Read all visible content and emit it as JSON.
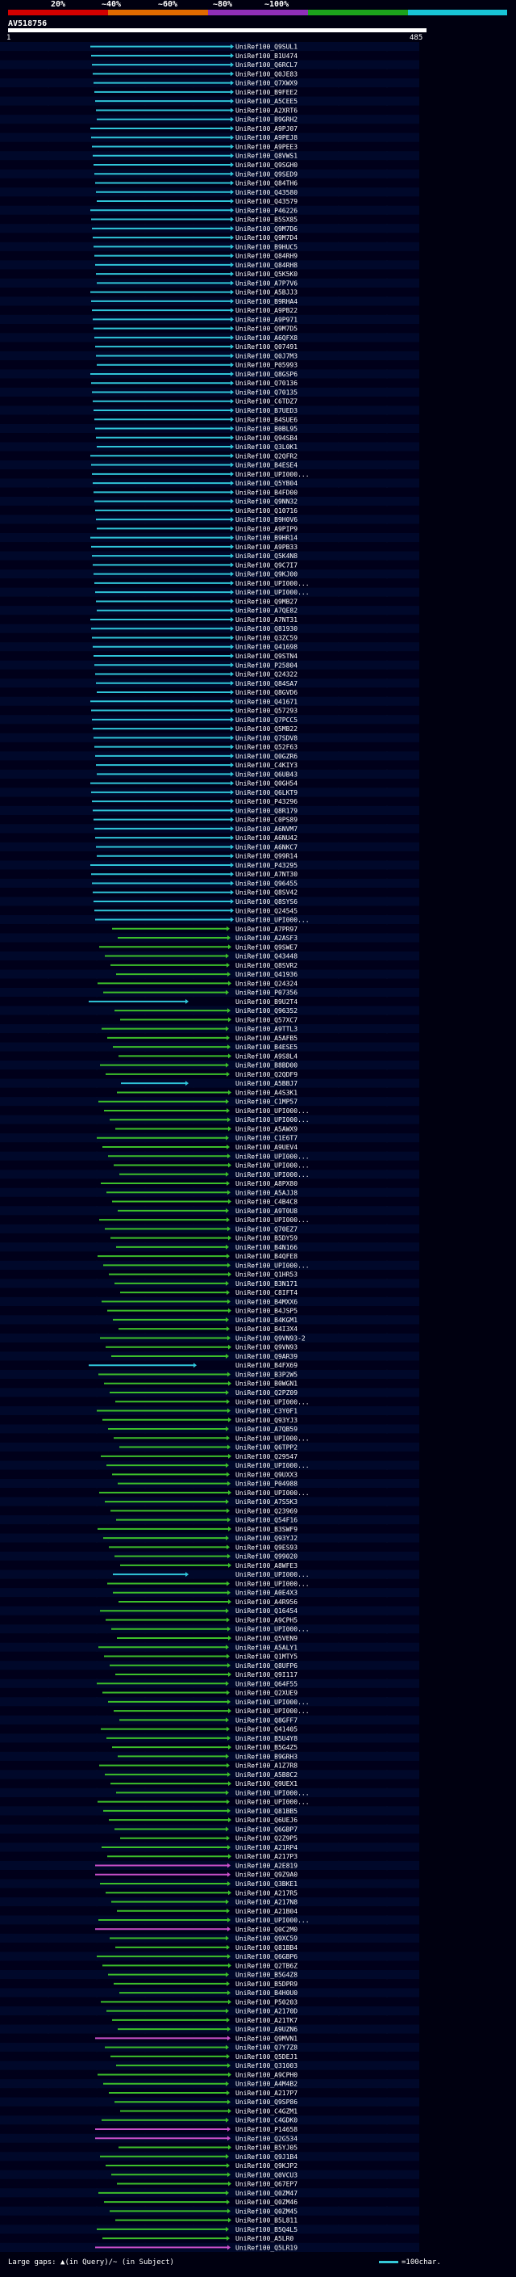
{
  "header": {
    "identity_legend": [
      {
        "label": "20%",
        "color": "#d40000"
      },
      {
        "label": "~40%",
        "color": "#e06a00"
      },
      {
        "label": "~60%",
        "color": "#8f2fb8"
      },
      {
        "label": "~80%",
        "color": "#1ca21c"
      },
      {
        "label": "~100%",
        "color": "#18c4d6"
      }
    ],
    "query_name": "AV518756",
    "axis_start": "1",
    "axis_end": "485"
  },
  "footer": {
    "gaps_label": "Large gaps: ▲(in Query)/~ (in Subject)",
    "scale_label": "=100char."
  },
  "colors": {
    "cyan": "#2fc4d8",
    "green": "#3cbf2a",
    "magenta": "#c84fc8",
    "white": "#ffffff"
  },
  "hits": [
    "UniRef100_Q9SUL1",
    "UniRef100_B1U474",
    "UniRef100_Q6RCL7",
    "UniRef100_Q0JE83",
    "UniRef100_Q7XWX9",
    "UniRef100_B9FEE2",
    "UniRef100_A5CEE5",
    "UniRef100_A2XRT6",
    "UniRef100_B9GRH2",
    "UniRef100_A9PJ07",
    "UniRef100_A9PEJ8",
    "UniRef100_A9PEE3",
    "UniRef100_Q8VWS1",
    "UniRef100_Q9SGH0",
    "UniRef100_Q9SED9",
    "UniRef100_Q84TH6",
    "UniRef100_Q43580",
    "UniRef100_Q43579",
    "UniRef100_P46226",
    "UniRef100_B5SX85",
    "UniRef100_Q9M7D6",
    "UniRef100_Q9M7D4",
    "UniRef100_B9HUC5",
    "UniRef100_Q84RH9",
    "UniRef100_Q84RH8",
    "UniRef100_Q5K5K0",
    "UniRef100_A7P7V6",
    "UniRef100_A5BJJ3",
    "UniRef100_B9RHA4",
    "UniRef100_A9PB22",
    "UniRef100_A9P971",
    "UniRef100_Q9M7D5",
    "UniRef100_A6QFX8",
    "UniRef100_Q07491",
    "UniRef100_Q0J7M3",
    "UniRef100_P05993",
    "UniRef100_Q8GSP6",
    "UniRef100_Q70136",
    "UniRef100_Q70135",
    "UniRef100_C6TDZ7",
    "UniRef100_B7UED3",
    "UniRef100_B4SUE6",
    "UniRef100_B0BL95",
    "UniRef100_Q94SB4",
    "UniRef100_Q3L0K1",
    "UniRef100_Q2QFR2",
    "UniRef100_B4ESE4",
    "UniRef100_UPI000...",
    "UniRef100_Q5YB04",
    "UniRef100_B4FD00",
    "UniRef100_Q9NN32",
    "UniRef100_Q10716",
    "UniRef100_B9H0V6",
    "UniRef100_A9PIP9",
    "UniRef100_B9HR14",
    "UniRef100_A9PB33",
    "UniRef100_Q5K4N8",
    "UniRef100_Q9C7I7",
    "UniRef100_Q9KJ00",
    "UniRef100_UPI000...",
    "UniRef100_UPI000...",
    "UniRef100_Q9MB27",
    "UniRef100_A7QE82",
    "UniRef100_A7NT31",
    "UniRef100_Q81930",
    "UniRef100_Q3ZC59",
    "UniRef100_Q41698",
    "UniRef100_Q9STN4",
    "UniRef100_P25804",
    "UniRef100_Q24322",
    "UniRef100_Q84SA7",
    "UniRef100_Q8GVD6",
    "UniRef100_Q41671",
    "UniRef100_Q57293",
    "UniRef100_Q7PCC5",
    "UniRef100_Q5MB22",
    "UniRef100_Q7SDV8",
    "UniRef100_Q52F63",
    "UniRef100_Q0GZR6",
    "UniRef100_C4KIY3",
    "UniRef100_Q6UB43",
    "UniRef100_Q0GH54",
    "UniRef100_Q6LKT9",
    "UniRef100_P43296",
    "UniRef100_Q8R179",
    "UniRef100_C0PS89",
    "UniRef100_A6NVM7",
    "UniRef100_A6NU42",
    "UniRef100_A6NKC7",
    "UniRef100_Q99R14",
    "UniRef100_P43295",
    "UniRef100_A7NT30",
    "UniRef100_Q96455",
    "UniRef100_Q8SV42",
    "UniRef100_Q8SYS6",
    "UniRef100_Q24545",
    "UniRef100_UPI000...",
    "UniRef100_A7PR97",
    "UniRef100_A2ASF3",
    "UniRef100_Q9SWE7",
    "UniRef100_Q43448",
    "UniRef100_Q8SVR2",
    "UniRef100_Q41936",
    "UniRef100_Q24324",
    "UniRef100_P07356",
    "UniRef100_B9U2T4",
    "UniRef100_Q96352",
    "UniRef100_Q57XC7",
    "UniRef100_A9TTL3",
    "UniRef100_A5AFB5",
    "UniRef100_B4ESE5",
    "UniRef100_A9S8L4",
    "UniRef100_B8BD00",
    "UniRef100_Q2QDF9",
    "UniRef100_A5BBJ7",
    "UniRef100_A4S3K1",
    "UniRef100_C1MP57",
    "UniRef100_UPI000...",
    "UniRef100_UPI000...",
    "UniRef100_A5AWX9",
    "UniRef100_C1E6T7",
    "UniRef100_A9UEV4",
    "UniRef100_UPI000...",
    "UniRef100_UPI000...",
    "UniRef100_UPI000...",
    "UniRef100_A8PX80",
    "UniRef100_A5AJJ8",
    "UniRef100_C4B4C8",
    "UniRef100_A9T0U8",
    "UniRef100_UPI000...",
    "UniRef100_Q70EZ7",
    "UniRef100_B5DY59",
    "UniRef100_B4N166",
    "UniRef100_B4QFE8",
    "UniRef100_UPI000...",
    "UniRef100_Q1HR53",
    "UniRef100_B3N171",
    "UniRef100_C8IFT4",
    "UniRef100_B4MXX6",
    "UniRef100_B4JSP5",
    "UniRef100_B4KGM1",
    "UniRef100_B4I3X4",
    "UniRef100_Q9VN93-2",
    "UniRef100_Q9VN93",
    "UniRef100_Q9AR39",
    "UniRef100_B4FX69",
    "UniRef100_B3P2W5",
    "UniRef100_B0WGN1",
    "UniRef100_Q2PZ09",
    "UniRef100_UPI000...",
    "UniRef100_C3Y0F1",
    "UniRef100_Q93YJ3",
    "UniRef100_A7QB59",
    "UniRef100_UPI000...",
    "UniRef100_Q6TPP2",
    "UniRef100_Q29547",
    "UniRef100_UPI000...",
    "UniRef100_Q9UXX3",
    "UniRef100_P04988",
    "UniRef100_UPI000...",
    "UniRef100_A7S5K3",
    "UniRef100_Q23969",
    "UniRef100_Q54F16",
    "UniRef100_B3SWF9",
    "UniRef100_Q93YJ2",
    "UniRef100_Q9ES93",
    "UniRef100_Q99020",
    "UniRef100_A8WFE3",
    "UniRef100_UPI000...",
    "UniRef100_UPI000...",
    "UniRef100_A0E4X3",
    "UniRef100_A4R956",
    "UniRef100_Q16454",
    "UniRef100_A9CPH5",
    "UniRef100_UPI000...",
    "UniRef100_Q5VEN9",
    "UniRef100_A5ALY1",
    "UniRef100_Q1MTY5",
    "UniRef100_Q8UFP6",
    "UniRef100_Q9I117",
    "UniRef100_Q64F55",
    "UniRef100_Q2XUE9",
    "UniRef100_UPI000...",
    "UniRef100_UPI000...",
    "UniRef100_Q8GFF7",
    "UniRef100_Q41405",
    "UniRef100_B5U4Y8",
    "UniRef100_B5G4Z5",
    "UniRef100_B9GRH3",
    "UniRef100_A1Z7R8",
    "UniRef100_A5B8C2",
    "UniRef100_Q9UEX1",
    "UniRef100_UPI000...",
    "UniRef100_UPI000...",
    "UniRef100_Q81BB5",
    "UniRef100_Q6UEJ6",
    "UniRef100_Q6GBP7",
    "UniRef100_Q2Z9P5",
    "UniRef100_A21RP4",
    "UniRef100_A217P3",
    "UniRef100_A2E819",
    "UniRef100_Q9Z9A0",
    "UniRef100_Q3BKE1",
    "UniRef100_A217R5",
    "UniRef100_A217N8",
    "UniRef100_A21B04",
    "UniRef100_UPI000...",
    "UniRef100_Q0C2M0",
    "UniRef100_Q9XC59",
    "UniRef100_Q81BB4",
    "UniRef100_Q6GBP6",
    "UniRef100_Q2TB6Z",
    "UniRef100_B5G4Z8",
    "UniRef100_B5DPR9",
    "UniRef100_B4H0U0",
    "UniRef100_P50203",
    "UniRef100_A2170D",
    "UniRef100_A21TK7",
    "UniRef100_A9UZN6",
    "UniRef100_Q9MVN1",
    "UniRef100_Q7Y7Z8",
    "UniRef100_Q5DEJ1",
    "UniRef100_Q31003",
    "UniRef100_A9CPH0",
    "UniRef100_A4M4B2",
    "UniRef100_A217P7",
    "UniRef100_Q9SP86",
    "UniRef100_C4GZM1",
    "UniRef100_C4GDK0",
    "UniRef100_P14658",
    "UniRef100_Q2G534",
    "UniRef100_B5YJ05",
    "UniRef100_Q9J1B4",
    "UniRef100_Q9KJP2",
    "UniRef100_Q0VCU3",
    "UniRef100_Q67EP7",
    "UniRef100_Q0ZM47",
    "UniRef100_Q0ZM46",
    "UniRef100_Q0ZM45",
    "UniRef100_B5L811",
    "UniRef100_B5Q4L5",
    "UniRef100_A5LR0",
    "UniRef100_Q5LR19"
  ]
}
